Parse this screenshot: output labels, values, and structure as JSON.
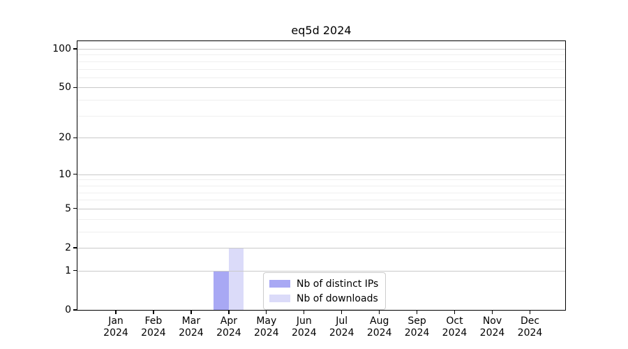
{
  "chart_data": {
    "type": "bar",
    "title": "eq5d 2024",
    "x_year": "2024",
    "categories": [
      "Jan",
      "Feb",
      "Mar",
      "Apr",
      "May",
      "Jun",
      "Jul",
      "Aug",
      "Sep",
      "Oct",
      "Nov",
      "Dec"
    ],
    "series": [
      {
        "name": "Nb of distinct IPs",
        "color": "#a8a8f4",
        "values": [
          0,
          0,
          0,
          1,
          0,
          0,
          0,
          0,
          0,
          0,
          0,
          0
        ]
      },
      {
        "name": "Nb of downloads",
        "color": "#dbdbf9",
        "values": [
          0,
          0,
          0,
          2,
          0,
          0,
          0,
          0,
          0,
          0,
          0,
          0
        ]
      }
    ],
    "yscale": "log1p",
    "yticks": [
      0,
      1,
      2,
      5,
      10,
      20,
      50,
      100
    ],
    "ylim": [
      0,
      113
    ],
    "grid": true,
    "legend_position": "inside-lower-center",
    "colors": {
      "grid_major": "#c9c9c9",
      "grid_minor": "#efefef",
      "spine": "#000000",
      "text": "#000000",
      "legend_border": "#cccccc"
    }
  }
}
